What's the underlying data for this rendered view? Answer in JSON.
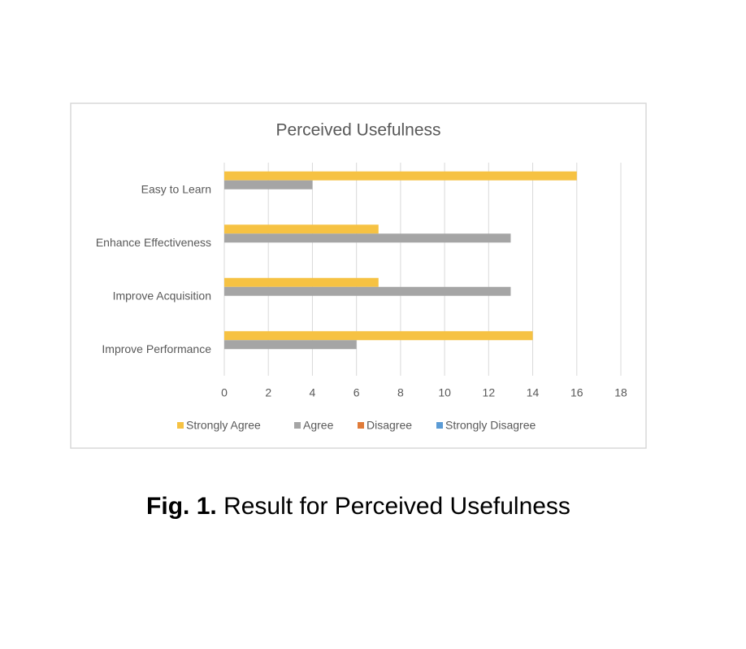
{
  "chart_data": {
    "type": "bar",
    "orientation": "horizontal",
    "title": "Perceived Usefulness",
    "categories": [
      "Easy to Learn",
      "Enhance Effectiveness",
      "Improve Acquisition",
      "Improve Performance"
    ],
    "series": [
      {
        "name": "Strongly Agree",
        "color": "#f6c243",
        "values": [
          16,
          7,
          7,
          14
        ]
      },
      {
        "name": "Agree",
        "color": "#a5a5a5",
        "values": [
          4,
          13,
          13,
          6
        ]
      },
      {
        "name": "Disagree",
        "color": "#e07b39",
        "values": [
          0,
          0,
          0,
          0
        ]
      },
      {
        "name": "Strongly Disagree",
        "color": "#5b9bd5",
        "values": [
          0,
          0,
          0,
          0
        ]
      }
    ],
    "xlim": [
      0,
      18
    ],
    "xticks": [
      0,
      2,
      4,
      6,
      8,
      10,
      12,
      14,
      16,
      18
    ],
    "grid": true,
    "legend": "bottom"
  },
  "caption": {
    "label": "Fig. 1.",
    "text": "Result for Perceived Usefulness"
  }
}
